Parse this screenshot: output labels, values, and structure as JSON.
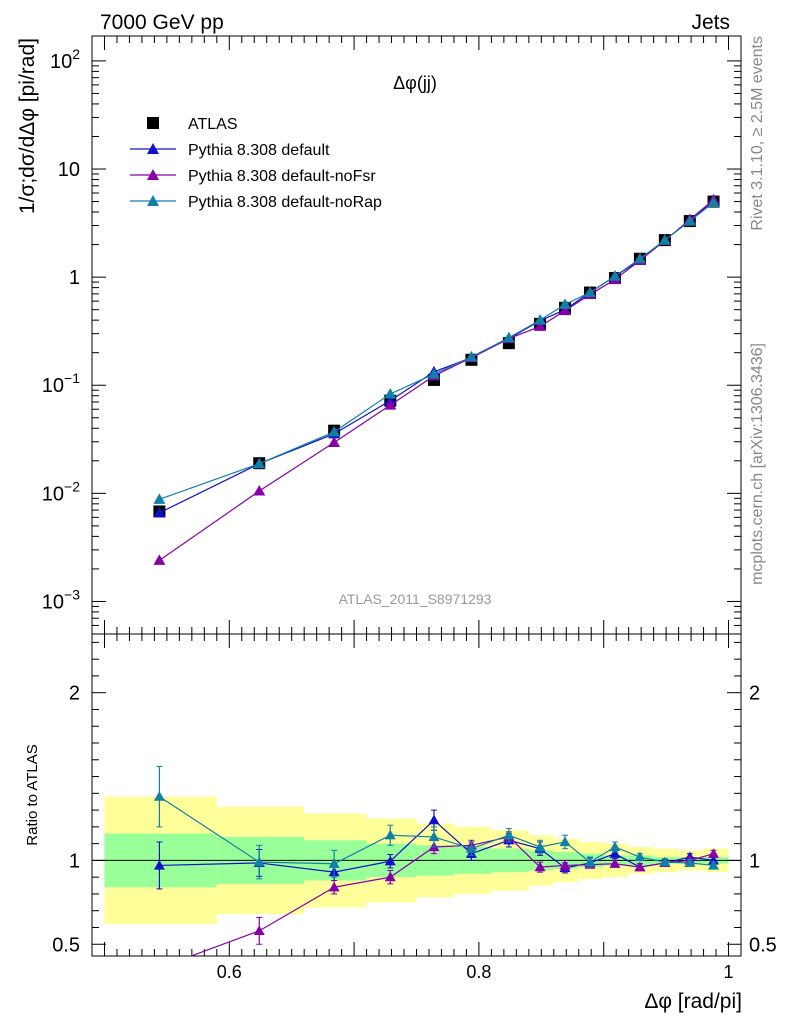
{
  "header": {
    "left": "7000 GeV pp",
    "right": "Jets"
  },
  "side_labels": {
    "top": "Rivet 3.1.10, ≥ 2.5M events",
    "bottom": "mcplots.cern.ch [arXiv:1306.3436]"
  },
  "plot_title": "Δφ(jj)",
  "analysis_id": "ATLAS_2011_S8971293",
  "chart_data": {
    "type": "scatter",
    "xlabel": "Δφ [rad/pi]",
    "ylabel": "1/σ;dσ/dΔφ [pi/rad]",
    "ratio_ylabel": "Ratio to ATLAS",
    "xlim": [
      0.49,
      1.01
    ],
    "ylim": [
      0.0005,
      170
    ],
    "yscale": "log",
    "ratio_ylim": [
      0.43,
      2.35
    ],
    "x_ticks": [
      "0.6",
      "0.8",
      "1"
    ],
    "y_ticks": [
      "10^-3",
      "10^-2",
      "10^-1",
      "1",
      "10",
      "10^2"
    ],
    "ratio_ticks": [
      "0.5",
      "1",
      "2"
    ],
    "legend_position": "top-left",
    "x": [
      0.544,
      0.624,
      0.684,
      0.729,
      0.764,
      0.794,
      0.824,
      0.849,
      0.869,
      0.889,
      0.909,
      0.929,
      0.949,
      0.969,
      0.988
    ],
    "bin_edges": [
      0.5,
      0.59,
      0.66,
      0.71,
      0.75,
      0.78,
      0.81,
      0.84,
      0.86,
      0.88,
      0.9,
      0.92,
      0.94,
      0.96,
      0.98,
      1.0
    ],
    "band_inner": [
      [
        0.84,
        1.16
      ],
      [
        0.86,
        1.14
      ],
      [
        0.88,
        1.12
      ],
      [
        0.9,
        1.1
      ],
      [
        0.91,
        1.09
      ],
      [
        0.92,
        1.08
      ],
      [
        0.93,
        1.07
      ],
      [
        0.94,
        1.06
      ],
      [
        0.95,
        1.05
      ],
      [
        0.96,
        1.04
      ],
      [
        0.97,
        1.03
      ],
      [
        0.97,
        1.03
      ],
      [
        0.98,
        1.02
      ],
      [
        0.98,
        1.02
      ],
      [
        0.98,
        1.02
      ]
    ],
    "band_outer": [
      [
        0.62,
        1.38
      ],
      [
        0.68,
        1.32
      ],
      [
        0.72,
        1.28
      ],
      [
        0.75,
        1.25
      ],
      [
        0.78,
        1.22
      ],
      [
        0.8,
        1.2
      ],
      [
        0.82,
        1.18
      ],
      [
        0.85,
        1.15
      ],
      [
        0.87,
        1.13
      ],
      [
        0.89,
        1.11
      ],
      [
        0.9,
        1.1
      ],
      [
        0.92,
        1.08
      ],
      [
        0.93,
        1.07
      ],
      [
        0.94,
        1.06
      ],
      [
        0.93,
        1.07
      ]
    ],
    "series": [
      {
        "name": "ATLAS",
        "color": "#000000",
        "marker": "square",
        "values": [
          0.0068,
          0.019,
          0.038,
          0.072,
          0.112,
          0.172,
          0.245,
          0.37,
          0.52,
          0.72,
          0.98,
          1.48,
          2.2,
          3.3,
          5.0
        ]
      },
      {
        "name": "Pythia 8.308 default",
        "color": "#1010cc",
        "marker": "triangle",
        "values": [
          0.0066,
          0.0188,
          0.0355,
          0.072,
          0.133,
          0.18,
          0.27,
          0.395,
          0.5,
          0.72,
          1.02,
          1.43,
          2.18,
          3.4,
          5.0
        ],
        "ratio": [
          0.97,
          0.985,
          0.93,
          0.995,
          1.24,
          1.04,
          1.12,
          1.07,
          0.955,
          0.985,
          1.04,
          0.96,
          0.985,
          1.02,
          1.0
        ],
        "ratio_err": [
          0.14,
          0.08,
          0.05,
          0.04,
          0.06,
          0.04,
          0.04,
          0.04,
          0.03,
          0.03,
          0.03,
          0.02,
          0.02,
          0.02,
          0.02
        ]
      },
      {
        "name": "Pythia 8.308 default-noFsr",
        "color": "#8800aa",
        "marker": "triangle",
        "values": [
          0.0024,
          0.0105,
          0.0295,
          0.0655,
          0.122,
          0.18,
          0.27,
          0.35,
          0.49,
          0.69,
          0.95,
          1.43,
          2.18,
          3.4,
          5.2
        ],
        "ratio": [
          0.36,
          0.58,
          0.84,
          0.9,
          1.08,
          1.09,
          1.14,
          0.96,
          0.97,
          0.975,
          0.98,
          0.96,
          0.985,
          1.0,
          1.04
        ],
        "ratio_err": [
          0.05,
          0.08,
          0.04,
          0.04,
          0.04,
          0.03,
          0.03,
          0.03,
          0.03,
          0.02,
          0.02,
          0.02,
          0.02,
          0.02,
          0.02
        ]
      },
      {
        "name": "Pythia 8.308 default-noRap",
        "color": "#1080a8",
        "marker": "triangle",
        "values": [
          0.0088,
          0.0188,
          0.037,
          0.083,
          0.127,
          0.183,
          0.275,
          0.4,
          0.56,
          0.72,
          1.02,
          1.48,
          2.2,
          3.3,
          4.9
        ],
        "ratio": [
          1.38,
          0.99,
          0.98,
          1.15,
          1.14,
          1.07,
          1.15,
          1.08,
          1.11,
          0.99,
          1.08,
          1.02,
          0.99,
          0.985,
          0.97
        ],
        "ratio_err": [
          0.18,
          0.1,
          0.08,
          0.06,
          0.06,
          0.04,
          0.04,
          0.04,
          0.04,
          0.03,
          0.03,
          0.02,
          0.02,
          0.02,
          0.02
        ]
      }
    ]
  }
}
